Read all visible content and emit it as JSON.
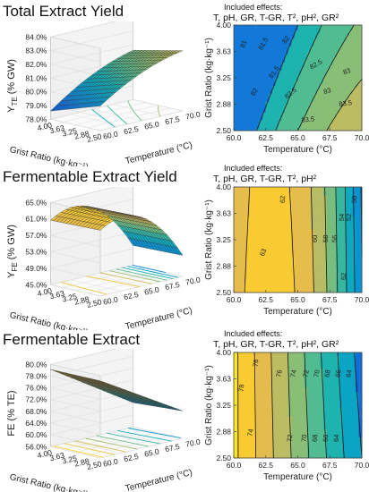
{
  "panels": [
    {
      "title": "Total Extract Yield",
      "effects_heading": "Included effects:",
      "effects_list": "T, pH, GR, T-GR, T², pH², GR²",
      "surface_zlabel": "Y_TE (% GW)",
      "surface_zlabel_main": "Y",
      "surface_zlabel_sub": "TE",
      "surface_zlabel_unit": "(% GW)",
      "surface_zticks": [
        "84.0%",
        "83.0%",
        "82.0%",
        "81.0%",
        "80.0%",
        "79.0%",
        "78.0%"
      ],
      "gr_ticks": [
        "4.00",
        "3.63",
        "3.25",
        "2.88",
        "2.50"
      ],
      "temp_ticks_surface": [
        "60.0",
        "62.5",
        "65.0",
        "67.5",
        "70.0"
      ],
      "contour_labels": [
        "81.5",
        "82",
        "82.5",
        "83",
        "83.5",
        "82",
        "81.5",
        "83.5",
        "82.5",
        "83",
        "81"
      ],
      "surface_colormap": "parula",
      "surface_zrange": [
        78.0,
        84.0
      ],
      "contour_levels": [
        80.5,
        81.0,
        81.5,
        82.0,
        82.5,
        83.0,
        83.5
      ]
    },
    {
      "title": "Fermentable Extract Yield",
      "effects_heading": "Included effects:",
      "effects_list": "T, pH, GR, T-GR, T², pH²",
      "surface_zlabel": "Y_FE (% GW)",
      "surface_zlabel_main": "Y",
      "surface_zlabel_sub": "FE",
      "surface_zlabel_unit": "(% GW)",
      "surface_zticks": [
        "65.0%",
        "61.0%",
        "57.0%",
        "53.0%",
        "49.0%",
        "45.0%"
      ],
      "gr_ticks": [
        "4.00",
        "3.63",
        "3.25",
        "2.88",
        "2.50"
      ],
      "temp_ticks_surface": [
        "60.0",
        "62.5",
        "65.0",
        "67.5",
        "70.0"
      ],
      "contour_labels": [
        "62",
        "62",
        "60",
        "58",
        "56",
        "54",
        "52",
        "50",
        "63"
      ],
      "surface_colormap": "parula",
      "surface_zrange": [
        45.0,
        65.0
      ],
      "contour_levels": [
        50,
        52,
        54,
        56,
        58,
        60,
        62,
        63
      ]
    },
    {
      "title": "Fermentable Extract",
      "effects_heading": "Included effects:",
      "effects_list": "T, pH, GR, T-GR, T², pH², GR²",
      "surface_zlabel": "FE (% TE)",
      "surface_zlabel_main": "FE (% TE)",
      "surface_zlabel_sub": "",
      "surface_zlabel_unit": "",
      "surface_zticks": [
        "80.0%",
        "78.0%",
        "76.0%",
        "72.0%",
        "68.0%",
        "64.0%",
        "60.0%",
        "56.0%"
      ],
      "gr_ticks": [
        "4.00",
        "3.63",
        "3.25",
        "2.88",
        "2.50"
      ],
      "temp_ticks_surface": [
        "60.0",
        "62.5",
        "65.0",
        "67.5",
        "70.0"
      ],
      "contour_labels": [
        "76",
        "74",
        "78",
        "72",
        "70",
        "68",
        "66",
        "64",
        "76",
        "74",
        "72",
        "70",
        "68",
        "66",
        "64"
      ],
      "surface_colormap": "parula",
      "surface_zrange": [
        56.0,
        80.0
      ],
      "contour_levels": [
        64,
        66,
        68,
        70,
        72,
        74,
        76,
        78
      ]
    }
  ],
  "axes": {
    "gr_label": "Grist Ratio (kg·kg⁻¹)",
    "temp_label": "Temperature (°C)",
    "contour_xticks": [
      "60.0",
      "62.5",
      "65.0",
      "67.5",
      "70.0"
    ],
    "contour_yticks": [
      "4.00",
      "3.63",
      "3.25",
      "2.88",
      "2.50"
    ]
  },
  "chart_data": [
    {
      "type": "surface+contour",
      "title": "Total Extract Yield",
      "x_name": "Temperature (°C)",
      "x_range": [
        60.0,
        70.0
      ],
      "y_name": "Grist Ratio (kg·kg⁻¹)",
      "y_range": [
        2.5,
        4.0
      ],
      "z_name": "Y_TE (% GW)",
      "z_range": [
        78.0,
        84.0
      ],
      "contour_levels": [
        81.0,
        81.5,
        82.0,
        82.5,
        83.0,
        83.5
      ]
    },
    {
      "type": "surface+contour",
      "title": "Fermentable Extract Yield",
      "x_name": "Temperature (°C)",
      "x_range": [
        60.0,
        70.0
      ],
      "y_name": "Grist Ratio (kg·kg⁻¹)",
      "y_range": [
        2.5,
        4.0
      ],
      "z_name": "Y_FE (% GW)",
      "z_range": [
        45.0,
        65.0
      ],
      "contour_levels": [
        50,
        52,
        54,
        56,
        58,
        60,
        62,
        63
      ]
    },
    {
      "type": "surface+contour",
      "title": "Fermentable Extract",
      "x_name": "Temperature (°C)",
      "x_range": [
        60.0,
        70.0
      ],
      "y_name": "Grist Ratio (kg·kg⁻¹)",
      "y_range": [
        2.5,
        4.0
      ],
      "z_name": "FE (% TE)",
      "z_range": [
        56.0,
        80.0
      ],
      "contour_levels": [
        64,
        66,
        68,
        70,
        72,
        74,
        76,
        78
      ]
    }
  ]
}
